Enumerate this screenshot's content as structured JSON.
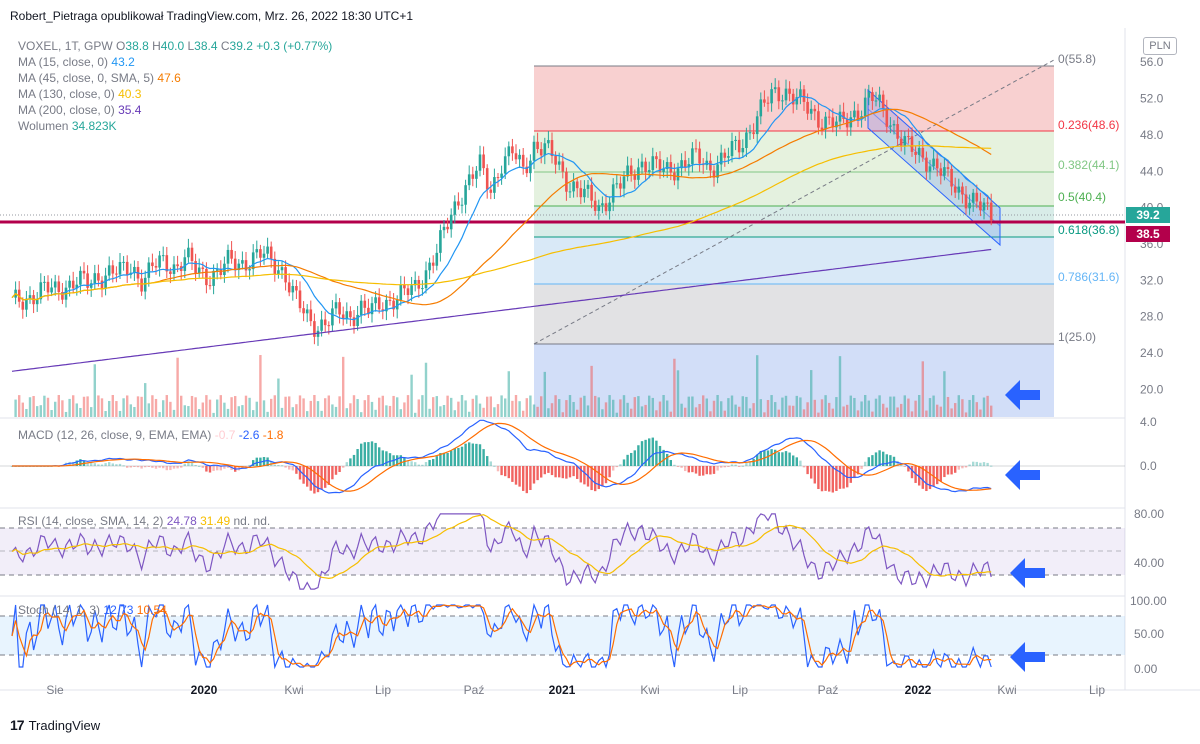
{
  "header": {
    "text": "Robert_Pietraga opublikował TradingView.com, Mrz. 26, 2022 18:30 UTC+1"
  },
  "legend": {
    "symbol": "VOXEL, 1T, GPW",
    "ohlc": {
      "o_label": "O",
      "o": "38.8",
      "h_label": "H",
      "h": "40.0",
      "l_label": "L",
      "l": "38.4",
      "c_label": "C",
      "c": "39.2",
      "change": "+0.3 (+0.77%)"
    },
    "indicators": [
      {
        "name": "MA (15, close, 0)",
        "value": "43.2",
        "color": "#2196f3"
      },
      {
        "name": "MA (45, close, 0, SMA, 5)",
        "value": "47.6",
        "color": "#f57c00"
      },
      {
        "name": "MA (130, close, 0)",
        "value": "40.3",
        "color": "#f6be00"
      },
      {
        "name": "MA (200, close, 0)",
        "value": "35.4",
        "color": "#673ab7"
      },
      {
        "name": "Wolumen",
        "value": "34.823K",
        "color": "#26a69a"
      }
    ]
  },
  "currency_badge": "PLN",
  "price_tags": {
    "last": "39.2",
    "support": "38.5"
  },
  "macd_legend": {
    "name": "MACD (12, 26, close, 9, EMA, EMA)",
    "hist": "-0.7",
    "macd": "-2.6",
    "signal": "-1.8"
  },
  "rsi_legend": {
    "name": "RSI (14, close, SMA, 14, 2)",
    "rsi": "24.78",
    "ma": "31.49",
    "nd1": "nd.",
    "nd2": "nd."
  },
  "stoch_legend": {
    "name": "Stoch (14, 1, 3)",
    "k": "12.73",
    "d": "10.54"
  },
  "footer": {
    "brand": "TradingView"
  },
  "colors": {
    "up": "#26a69a",
    "down": "#ef5350",
    "ma15": "#2196f3",
    "ma45": "#f57c00",
    "ma130": "#f6be00",
    "ma200": "#673ab7",
    "arrow": "#2962ff",
    "support": "#b3004b"
  },
  "chart_data": [
    {
      "type": "candlestick",
      "title": "VOXEL, 1T, GPW",
      "x_ticks": [
        "Sie",
        "2020",
        "Kwi",
        "Lip",
        "Paź",
        "2021",
        "Kwi",
        "Lip",
        "Paź",
        "2022",
        "Kwi",
        "Lip"
      ],
      "y_ticks": [
        20.0,
        24.0,
        28.0,
        32.0,
        36.0,
        40.0,
        44.0,
        48.0,
        52.0,
        56.0
      ],
      "ylim": [
        17.0,
        58.0
      ],
      "series": [
        {
          "name": "VOXEL",
          "close_approx": [
            29.5,
            29.8,
            30.5,
            31.0,
            30.8,
            31.5,
            32.0,
            31.5,
            32.5,
            33.0,
            32.8,
            33.5,
            32.0,
            33.5,
            34.0,
            33.5,
            34.5,
            33.0,
            32.5,
            33.0,
            34.0,
            33.8,
            34.5,
            34.8,
            34.0,
            33.0,
            30.0,
            28.0,
            27.0,
            27.5,
            28.5,
            28.0,
            29.0,
            28.5,
            29.5,
            30.0,
            30.5,
            31.0,
            33.0,
            35.0,
            38.0,
            41.0,
            43.0,
            44.5,
            42.0,
            45.0,
            46.0,
            44.0,
            47.0,
            46.5,
            45.0,
            43.0,
            42.0,
            41.0,
            40.0,
            41.5,
            42.5,
            44.0,
            45.0,
            44.5,
            44.0,
            44.5,
            45.0,
            45.5,
            44.5,
            45.0,
            46.0,
            47.0,
            49.0,
            51.0,
            52.5,
            53.0,
            52.0,
            51.0,
            50.0,
            49.5,
            49.0,
            50.0,
            51.0,
            52.0,
            51.0,
            49.0,
            47.0,
            46.0,
            45.5,
            44.5,
            43.0,
            42.0,
            41.0,
            40.0,
            39.2
          ]
        },
        {
          "name": "MA (15, close, 0)",
          "last": 43.2
        },
        {
          "name": "MA (45, close, 0, SMA, 5)",
          "last": 47.6
        },
        {
          "name": "MA (130, close, 0)",
          "last": 40.3
        },
        {
          "name": "MA (200, close, 0)",
          "last": 35.4
        }
      ],
      "fibonacci": [
        {
          "level": "0",
          "price": 55.8
        },
        {
          "level": "0.236",
          "price": 48.6
        },
        {
          "level": "0.382",
          "price": 44.1
        },
        {
          "level": "0.5",
          "price": 40.4
        },
        {
          "level": "0.618",
          "price": 36.8
        },
        {
          "level": "0.786",
          "price": 31.6
        },
        {
          "level": "1",
          "price": 25.0
        }
      ],
      "horizontal_line": 38.5,
      "volume_last": "34.823K"
    },
    {
      "type": "line",
      "title": "MACD (12, 26, close, 9, EMA, EMA)",
      "y_ticks": [
        0.0,
        4.0
      ],
      "macd_last": -2.6,
      "signal_last": -1.8,
      "hist_last": -0.7
    },
    {
      "type": "line",
      "title": "RSI (14, close, SMA, 14, 2)",
      "y_ticks": [
        40.0,
        80.0
      ],
      "bands": [
        30,
        70
      ],
      "rsi_last": 24.78,
      "ma_last": 31.49
    },
    {
      "type": "line",
      "title": "Stoch (14, 1, 3)",
      "y_ticks": [
        0.0,
        50.0,
        100.0
      ],
      "bands": [
        20,
        80
      ],
      "k_last": 12.73,
      "d_last": 10.54
    }
  ]
}
